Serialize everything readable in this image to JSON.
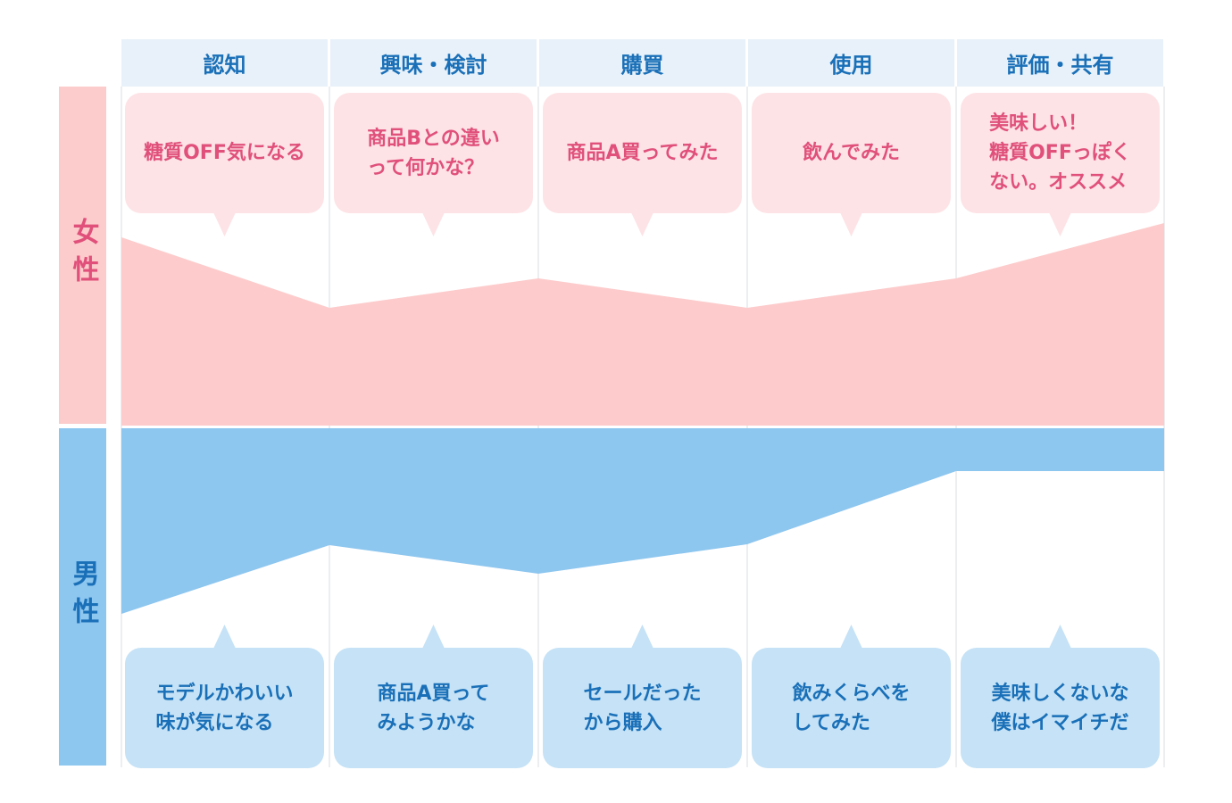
{
  "rows": {
    "female": "女性",
    "male": "男性"
  },
  "stages": [
    "認知",
    "興味・検討",
    "購買",
    "使用",
    "評価・共有"
  ],
  "female_comments": [
    [
      "糖質OFF気になる"
    ],
    [
      "商品Bとの違い",
      "って何かな？"
    ],
    [
      "商品A買ってみた"
    ],
    [
      "飲んでみた"
    ],
    [
      "美味しい！",
      "糖質OFFっぽく",
      "ない。オススメ"
    ]
  ],
  "male_comments": [
    [
      "モデルかわいい",
      "味が気になる"
    ],
    [
      "商品A買って",
      "みようかな"
    ],
    [
      "セールだった",
      "から購入"
    ],
    [
      "飲みくらべを",
      "してみた"
    ],
    [
      "美味しくないな",
      "僕はイマイチだ"
    ]
  ]
}
